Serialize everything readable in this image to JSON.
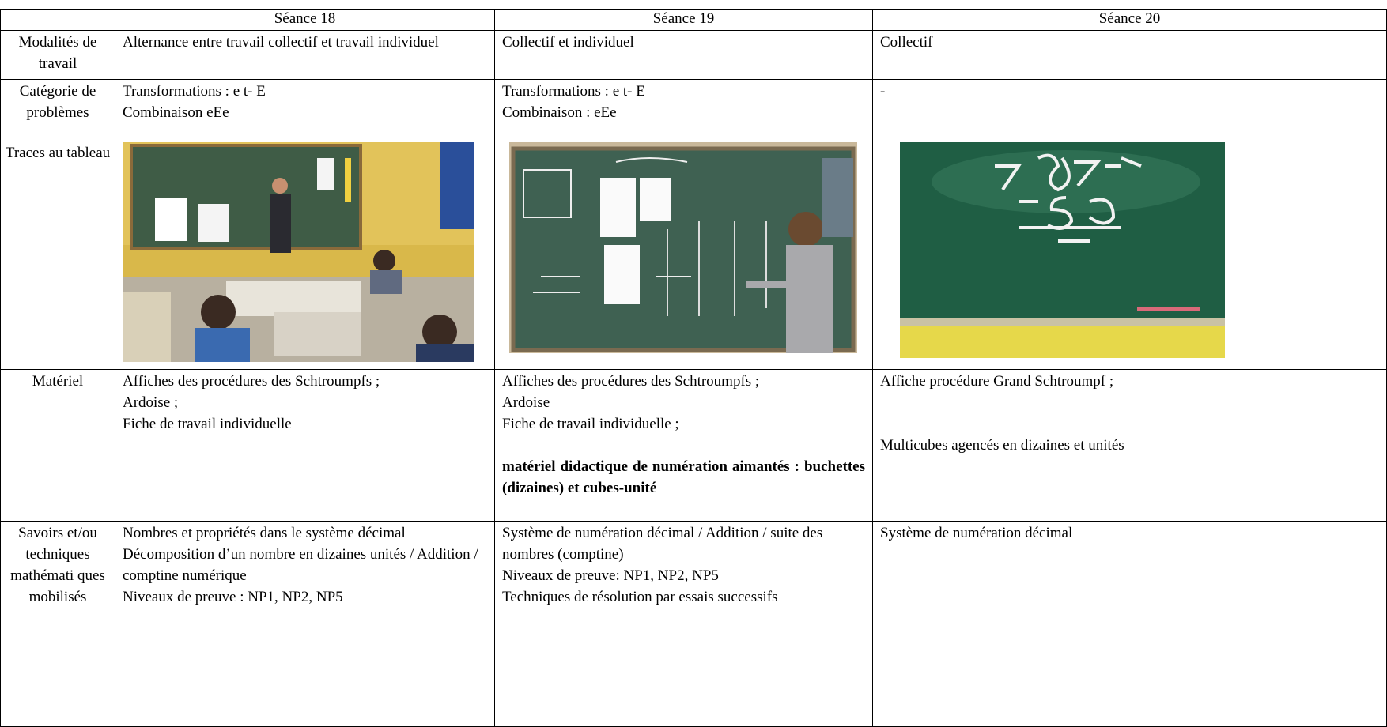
{
  "table": {
    "header": [
      "Séance 18",
      "Séance 19",
      "Séance 20"
    ],
    "rows": [
      {
        "label": "Modalités de travail",
        "cells": [
          [
            "Alternance entre travail collectif et travail individuel"
          ],
          [
            "Collectif et individuel"
          ],
          [
            "Collectif"
          ]
        ]
      },
      {
        "label": "Catégorie de problèmes",
        "cells": [
          [
            "Transformations : e t- E",
            "Combinaison  eEe"
          ],
          [
            "Transformations : e t- E",
            "Combinaison : eEe"
          ],
          [
            "-"
          ]
        ]
      },
      {
        "label": "Traces au tableau",
        "cells": []
      },
      {
        "label": "Matériel",
        "cells": [
          [
            "Affiches des procédures des Schtroumpfs ;",
            "Ardoise ;",
            "Fiche de travail individuelle"
          ],
          [
            "Affiches des procédures des Schtroumpfs ;",
            "Ardoise",
            "Fiche de travail individuelle ;",
            "matériel didactique de numération aimantés : buchettes (dizaines) et cubes-unité"
          ],
          [
            "Affiche procédure Grand Schtroumpf ;",
            "Multicubes agencés en dizaines et unités"
          ]
        ]
      },
      {
        "label": "Savoirs et/ou techniques mathémati ques mobilisés",
        "cells": [
          [
            "Nombres et propriétés dans le système décimal",
            "Décomposition d’un nombre en dizaines unités / Addition / comptine numérique",
            "Niveaux de preuve : NP1, NP2, NP5"
          ],
          [
            "Système de numération  décimal / Addition / suite des nombres (comptine)",
            "Niveaux de preuve: NP1, NP2, NP5",
            "Techniques de résolution par essais successifs"
          ],
          [
            "Système de numération décimal"
          ]
        ]
      }
    ]
  }
}
